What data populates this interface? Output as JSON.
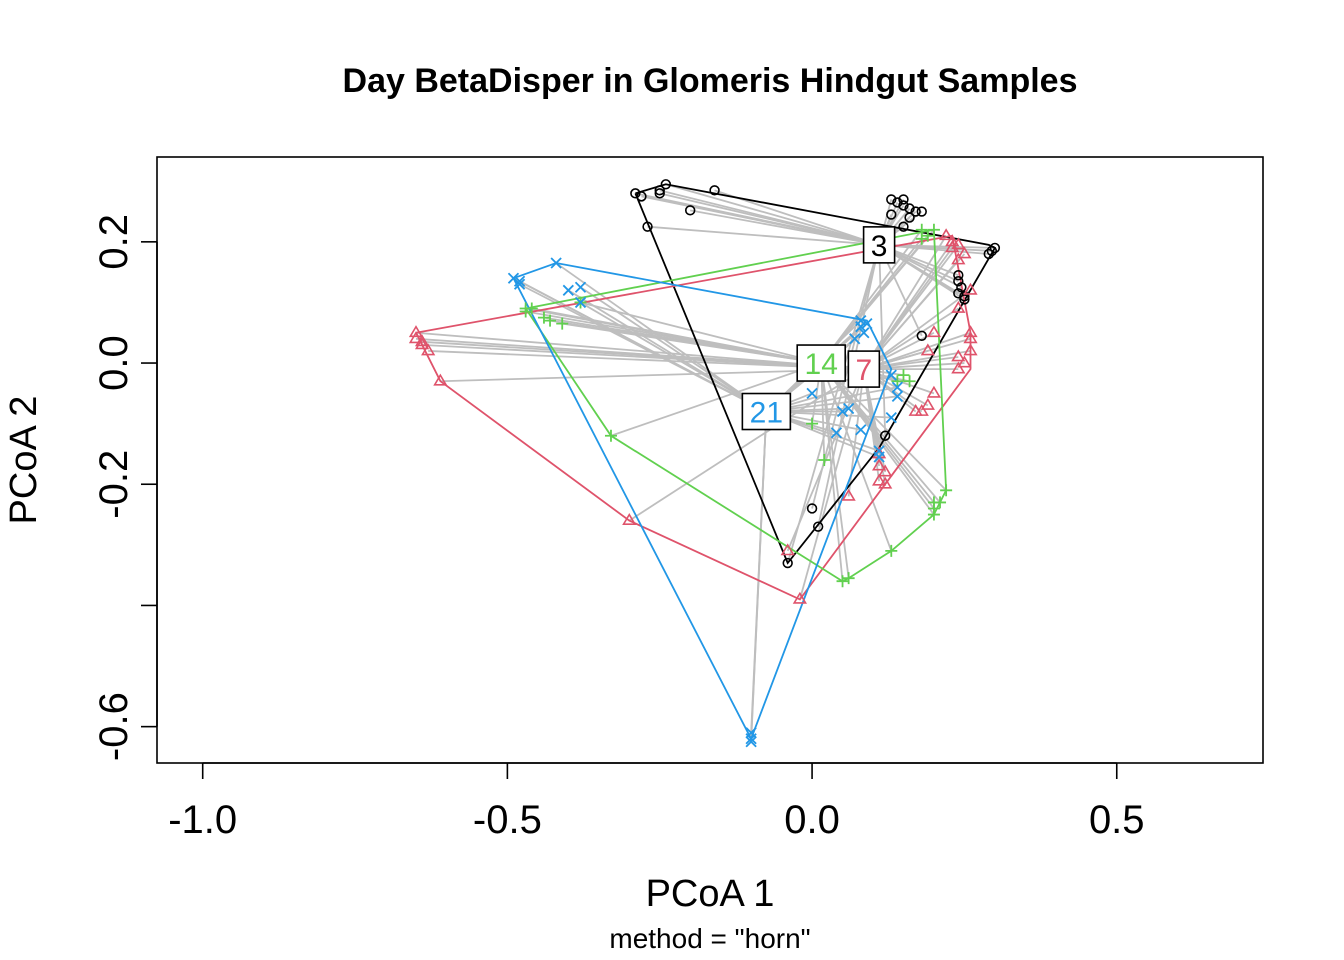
{
  "chart_data": {
    "type": "scatter",
    "title": "Day BetaDisper in Glomeris Hindgut Samples",
    "xlabel": "PCoA 1",
    "ylabel": "PCoA 2",
    "subtitle": "method = \"horn\"",
    "xlim": [
      -1.075,
      0.74
    ],
    "ylim": [
      -0.66,
      0.34
    ],
    "x_ticks": [
      -1.0,
      -0.5,
      0.0,
      0.5
    ],
    "x_tick_labels": [
      "-1.0",
      "-0.5",
      "0.0",
      "0.5"
    ],
    "y_ticks": [
      -0.6,
      -0.4,
      -0.2,
      0.0,
      0.2
    ],
    "y_tick_labels": [
      "-0.6",
      "",
      "-0.2",
      "0.0",
      "0.2"
    ],
    "segment_color": "#bebebe",
    "groups": [
      {
        "label": "3",
        "color": "#000000",
        "marker": "circle",
        "centroid": [
          0.11,
          0.195
        ],
        "hull": [
          [
            -0.29,
            0.28
          ],
          [
            -0.24,
            0.295
          ],
          [
            0.29,
            0.195
          ],
          [
            0.3,
            0.19
          ],
          [
            0.11,
            -0.14
          ],
          [
            -0.04,
            -0.33
          ],
          [
            -0.29,
            0.28
          ]
        ],
        "points": [
          [
            -0.29,
            0.28
          ],
          [
            -0.28,
            0.275
          ],
          [
            -0.25,
            0.28
          ],
          [
            -0.25,
            0.285
          ],
          [
            -0.24,
            0.295
          ],
          [
            -0.16,
            0.285
          ],
          [
            -0.2,
            0.252
          ],
          [
            -0.27,
            0.225
          ],
          [
            0.13,
            0.27
          ],
          [
            0.14,
            0.265
          ],
          [
            0.15,
            0.27
          ],
          [
            0.15,
            0.26
          ],
          [
            0.16,
            0.255
          ],
          [
            0.17,
            0.25
          ],
          [
            0.18,
            0.25
          ],
          [
            0.16,
            0.24
          ],
          [
            0.15,
            0.225
          ],
          [
            0.13,
            0.245
          ],
          [
            0.29,
            0.18
          ],
          [
            0.3,
            0.19
          ],
          [
            0.295,
            0.185
          ],
          [
            0.24,
            0.145
          ],
          [
            0.24,
            0.135
          ],
          [
            0.245,
            0.125
          ],
          [
            0.24,
            0.115
          ],
          [
            0.25,
            0.105
          ],
          [
            0.25,
            0.11
          ],
          [
            0.18,
            0.045
          ],
          [
            0.12,
            -0.12
          ],
          [
            0.0,
            -0.24
          ],
          [
            0.01,
            -0.27
          ],
          [
            -0.04,
            -0.33
          ]
        ]
      },
      {
        "label": "7",
        "color": "#df536b",
        "marker": "triangle",
        "centroid": [
          0.085,
          -0.01
        ],
        "hull": [
          [
            -0.65,
            0.05
          ],
          [
            0.23,
            0.21
          ],
          [
            0.26,
            0.05
          ],
          [
            0.26,
            -0.01
          ],
          [
            0.12,
            -0.2
          ],
          [
            -0.02,
            -0.39
          ],
          [
            -0.3,
            -0.26
          ],
          [
            -0.61,
            -0.03
          ],
          [
            -0.65,
            0.05
          ]
        ],
        "points": [
          [
            -0.65,
            0.05
          ],
          [
            -0.65,
            0.04
          ],
          [
            -0.64,
            0.03
          ],
          [
            -0.63,
            0.02
          ],
          [
            -0.64,
            0.035
          ],
          [
            -0.61,
            -0.03
          ],
          [
            -0.3,
            -0.26
          ],
          [
            -0.04,
            -0.31
          ],
          [
            -0.02,
            -0.39
          ],
          [
            0.22,
            0.21
          ],
          [
            0.23,
            0.2
          ],
          [
            0.24,
            0.195
          ],
          [
            0.23,
            0.19
          ],
          [
            0.25,
            0.18
          ],
          [
            0.24,
            0.17
          ],
          [
            0.26,
            0.12
          ],
          [
            0.24,
            0.09
          ],
          [
            0.26,
            0.05
          ],
          [
            0.26,
            0.04
          ],
          [
            0.26,
            0.02
          ],
          [
            0.25,
            0.0
          ],
          [
            0.24,
            0.01
          ],
          [
            0.24,
            -0.01
          ],
          [
            0.2,
            0.05
          ],
          [
            0.19,
            0.02
          ],
          [
            0.2,
            -0.05
          ],
          [
            0.19,
            -0.07
          ],
          [
            0.18,
            -0.08
          ],
          [
            0.17,
            -0.08
          ],
          [
            0.11,
            -0.15
          ],
          [
            0.11,
            -0.17
          ],
          [
            0.12,
            -0.18
          ],
          [
            0.11,
            -0.195
          ],
          [
            0.12,
            -0.2
          ],
          [
            0.06,
            -0.22
          ]
        ]
      },
      {
        "label": "14",
        "color": "#61d04f",
        "marker": "plus",
        "centroid": [
          0.015,
          0.0
        ],
        "hull": [
          [
            -0.47,
            0.09
          ],
          [
            0.2,
            0.22
          ],
          [
            0.22,
            -0.21
          ],
          [
            0.2,
            -0.25
          ],
          [
            0.13,
            -0.31
          ],
          [
            0.06,
            -0.355
          ],
          [
            0.05,
            -0.36
          ],
          [
            -0.33,
            -0.12
          ],
          [
            -0.47,
            0.09
          ]
        ],
        "points": [
          [
            -0.47,
            0.09
          ],
          [
            -0.47,
            0.085
          ],
          [
            -0.46,
            0.09
          ],
          [
            -0.44,
            0.075
          ],
          [
            -0.43,
            0.07
          ],
          [
            -0.41,
            0.065
          ],
          [
            -0.38,
            0.1
          ],
          [
            -0.33,
            -0.12
          ],
          [
            0.18,
            0.22
          ],
          [
            0.2,
            0.22
          ],
          [
            0.19,
            0.21
          ],
          [
            0.18,
            0.205
          ],
          [
            0.15,
            -0.02
          ],
          [
            0.16,
            -0.03
          ],
          [
            0.14,
            -0.03
          ],
          [
            0.0,
            -0.1
          ],
          [
            0.02,
            -0.16
          ],
          [
            0.22,
            -0.21
          ],
          [
            0.2,
            -0.23
          ],
          [
            0.21,
            -0.23
          ],
          [
            0.2,
            -0.24
          ],
          [
            0.2,
            -0.25
          ],
          [
            0.13,
            -0.31
          ],
          [
            0.06,
            -0.355
          ],
          [
            0.05,
            -0.36
          ]
        ]
      },
      {
        "label": "21",
        "color": "#2297e6",
        "marker": "cross",
        "centroid": [
          -0.075,
          -0.08
        ],
        "hull": [
          [
            -0.49,
            0.14
          ],
          [
            -0.42,
            0.165
          ],
          [
            0.09,
            0.07
          ],
          [
            0.13,
            -0.01
          ],
          [
            -0.1,
            -0.62
          ],
          [
            -0.49,
            0.14
          ]
        ],
        "points": [
          [
            -0.49,
            0.14
          ],
          [
            -0.48,
            0.135
          ],
          [
            -0.48,
            0.13
          ],
          [
            -0.42,
            0.165
          ],
          [
            -0.4,
            0.12
          ],
          [
            -0.38,
            0.125
          ],
          [
            -0.38,
            0.1
          ],
          [
            0.08,
            0.07
          ],
          [
            0.09,
            0.065
          ],
          [
            0.08,
            0.06
          ],
          [
            0.085,
            0.05
          ],
          [
            0.07,
            0.04
          ],
          [
            0.13,
            -0.02
          ],
          [
            0.14,
            -0.04
          ],
          [
            0.14,
            -0.055
          ],
          [
            0.13,
            -0.09
          ],
          [
            0.0,
            -0.05
          ],
          [
            0.06,
            -0.075
          ],
          [
            0.05,
            -0.08
          ],
          [
            0.04,
            -0.115
          ],
          [
            0.08,
            -0.11
          ],
          [
            0.11,
            -0.145
          ],
          [
            0.11,
            -0.155
          ],
          [
            -0.1,
            -0.61
          ],
          [
            -0.1,
            -0.62
          ],
          [
            -0.1,
            -0.625
          ]
        ]
      }
    ]
  }
}
